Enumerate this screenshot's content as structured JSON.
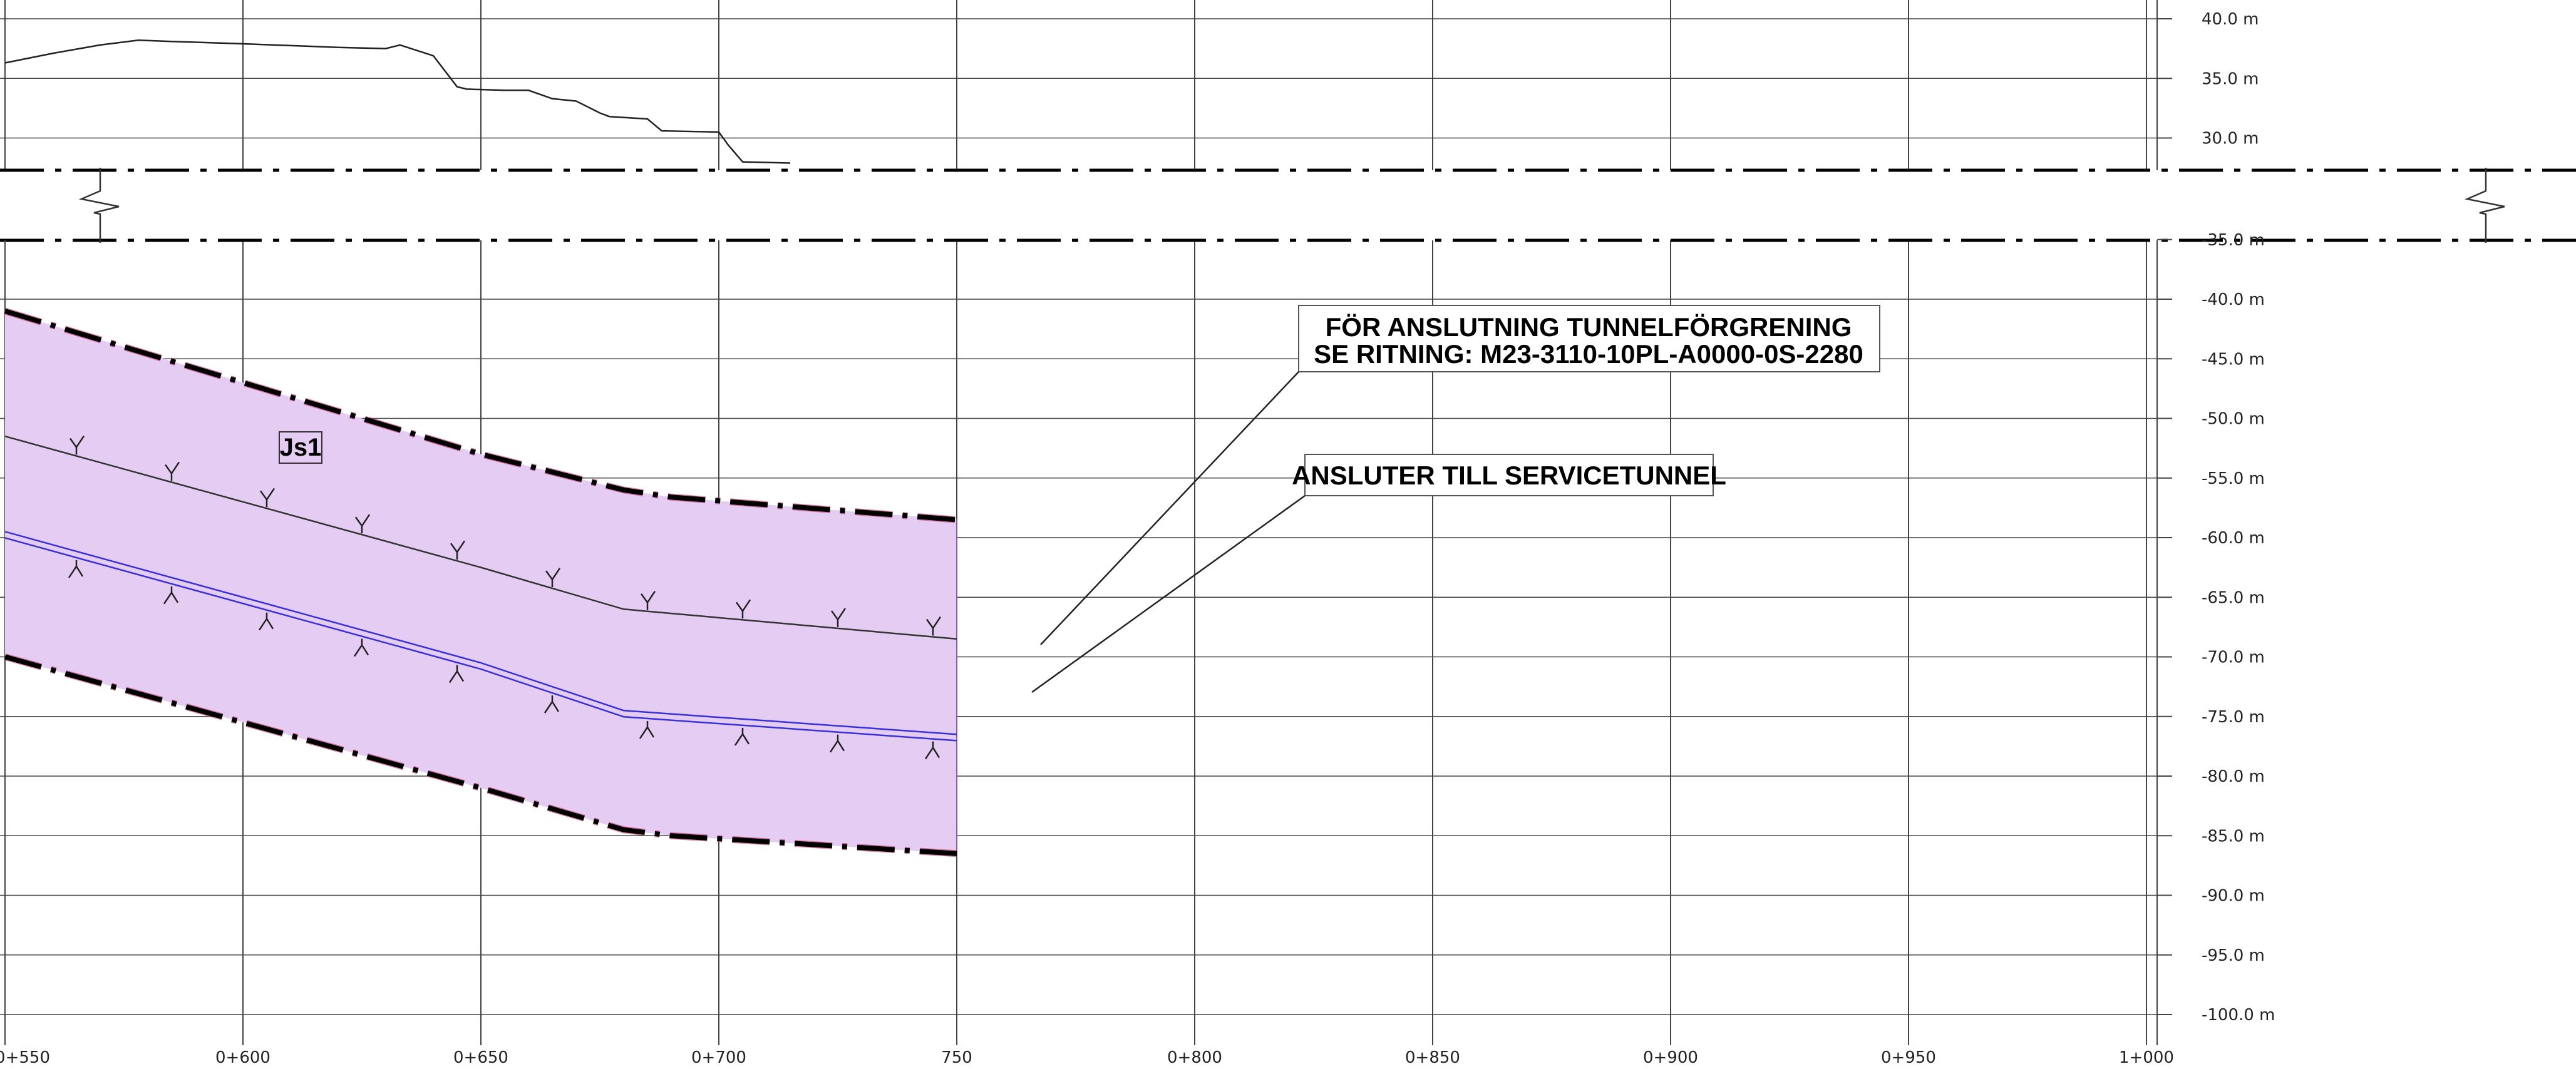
{
  "colors": {
    "background": "#ffffff",
    "grid": "#444444",
    "zone_fill": "#e5ccf3",
    "zone_boundary": "#000000",
    "dashed_line_highlight": "#c0306a",
    "tunnel_line": "#3a30d8",
    "rock_line": "#333333"
  },
  "chart_data": {
    "type": "line",
    "x_ticks": [
      "0+550",
      "0+600",
      "0+650",
      "0+700",
      "750",
      "0+800",
      "0+850",
      "0+900",
      "0+950",
      "1+000"
    ],
    "y_ticks_upper": [
      "40.0 m",
      "35.0 m",
      "30.0 m"
    ],
    "y_ticks_lower": [
      "-35.0 m",
      "-40.0 m",
      "-45.0 m",
      "-50.0 m",
      "-55.0 m",
      "-60.0 m",
      "-65.0 m",
      "-70.0 m",
      "-75.0 m",
      "-80.0 m",
      "-85.0 m",
      "-90.0 m",
      "-95.0 m",
      "-100.0 m"
    ],
    "xlim": [
      550,
      1000
    ],
    "ylim_upper": [
      27.5,
      41
    ],
    "ylim_lower": [
      -101,
      -34
    ],
    "axis_break": true,
    "grid": true,
    "ground_surface": {
      "x": [
        550,
        560,
        570,
        578,
        585,
        600,
        620,
        630,
        633,
        640,
        645,
        647,
        655,
        660,
        665,
        670,
        675,
        677,
        685,
        688,
        700,
        702,
        705,
        715
      ],
      "y": [
        36.3,
        37.1,
        37.8,
        38.2,
        38.1,
        37.9,
        37.6,
        37.5,
        37.8,
        36.9,
        34.3,
        34.1,
        34.0,
        34.0,
        33.3,
        33.1,
        32.1,
        31.8,
        31.6,
        30.6,
        30.5,
        29.4,
        28.0,
        27.9
      ]
    },
    "zone_upper_boundary": {
      "x": [
        550,
        600,
        650,
        680,
        690,
        750
      ],
      "y": [
        -41,
        -47,
        -53,
        -56,
        -56.6,
        -58.5
      ]
    },
    "zone_lower_boundary": {
      "x": [
        550,
        600,
        650,
        680,
        690,
        750
      ],
      "y": [
        -70,
        -75.5,
        -81,
        -84.5,
        -85,
        -86.5
      ]
    },
    "rock_line": {
      "x": [
        550,
        600,
        650,
        680,
        750
      ],
      "y": [
        -51.5,
        -57,
        -62.5,
        -66,
        -68.5
      ]
    },
    "tunnel_line": {
      "x": [
        550,
        600,
        650,
        680,
        750
      ],
      "y": [
        -59.5,
        -65,
        -70.5,
        -74.5,
        -76.5
      ]
    },
    "zone_labels": [
      "Js1"
    ]
  },
  "annotations": {
    "branch_note_line1": "FÖR ANSLUTNING TUNNELFÖRGRENING",
    "branch_note_line2": "SE RITNING: M23-3110-10PL-A0000-0S-2280",
    "service_note": "ANSLUTER TILL SERVICETUNNEL"
  }
}
